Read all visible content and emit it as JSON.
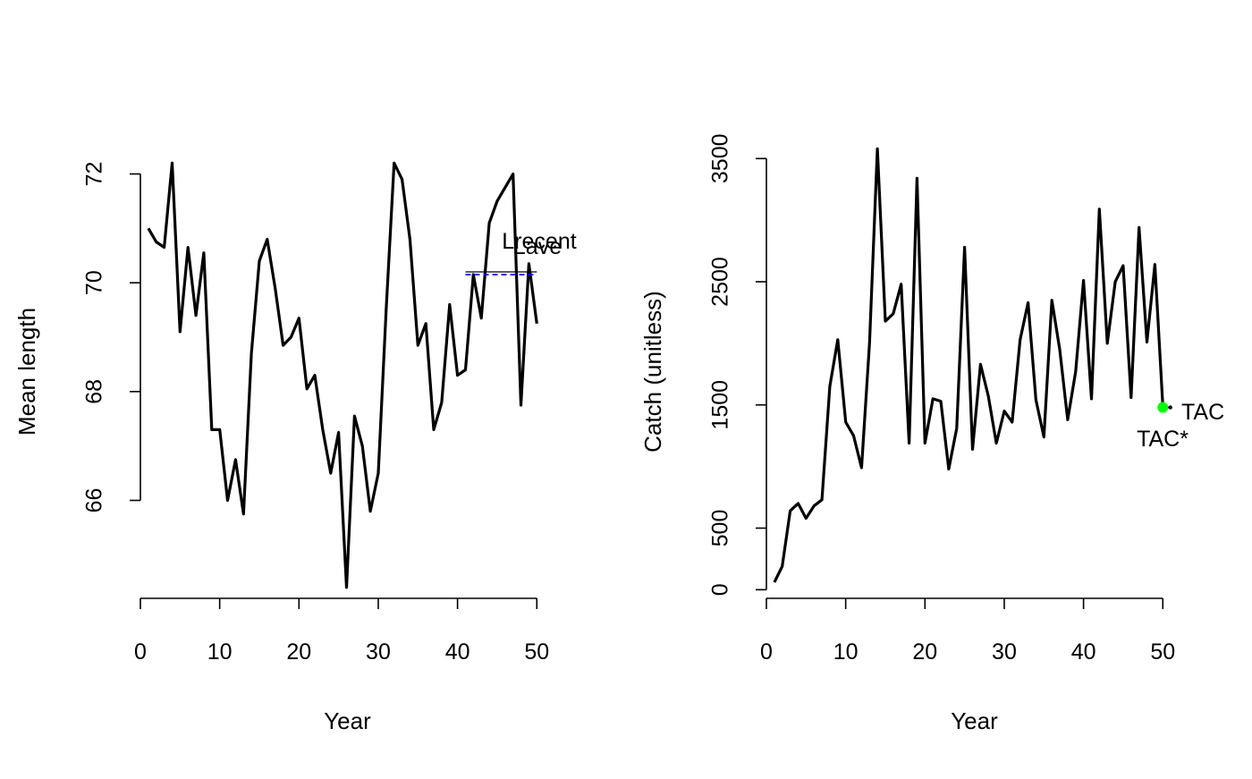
{
  "chart_data": [
    {
      "type": "line",
      "xlabel": "Year",
      "ylabel": "Mean length",
      "xlim": [
        0,
        52
      ],
      "ylim": [
        64.2,
        72.6
      ],
      "xticks": [
        0,
        10,
        20,
        30,
        40,
        50
      ],
      "yticks": [
        66,
        68,
        70,
        72
      ],
      "grid": false,
      "series": [
        {
          "color": "#000000",
          "x": [
            1,
            2,
            3,
            4,
            5,
            6,
            7,
            8,
            9,
            10,
            11,
            12,
            13,
            14,
            15,
            16,
            17,
            18,
            19,
            20,
            21,
            22,
            23,
            24,
            25,
            26,
            27,
            28,
            29,
            30,
            31,
            32,
            33,
            34,
            35,
            36,
            37,
            38,
            39,
            40,
            41,
            42,
            43,
            44,
            45,
            46,
            47,
            48,
            49,
            50
          ],
          "y": [
            71.0,
            70.75,
            70.65,
            72.2,
            69.1,
            70.65,
            69.4,
            70.55,
            67.3,
            67.3,
            66.0,
            66.75,
            65.75,
            68.7,
            70.4,
            70.8,
            69.9,
            68.85,
            69.0,
            69.35,
            68.05,
            68.3,
            67.3,
            66.5,
            67.25,
            64.4,
            67.55,
            67.0,
            65.8,
            66.5,
            69.5,
            72.2,
            71.9,
            70.8,
            68.85,
            69.25,
            67.3,
            67.8,
            69.6,
            68.3,
            68.4,
            70.15,
            69.35,
            71.1,
            71.5,
            71.75,
            72.0,
            67.75,
            70.35,
            69.25
          ]
        }
      ],
      "reference_lines": [
        {
          "label": "Lrecent",
          "color": "#000000",
          "style": "solid",
          "x": [
            41,
            50
          ],
          "y": 70.2
        },
        {
          "label": "Lave",
          "color": "#0000ff",
          "style": "dashed",
          "x": [
            41,
            50
          ],
          "y": 70.15
        }
      ]
    },
    {
      "type": "line",
      "xlabel": "Year",
      "ylabel": "Catch (unitless)",
      "xlim": [
        0,
        52
      ],
      "ylim": [
        -70,
        3640
      ],
      "xticks": [
        0,
        10,
        20,
        30,
        40,
        50
      ],
      "yticks": [
        0,
        500,
        1500,
        2500,
        3500
      ],
      "grid": false,
      "series": [
        {
          "color": "#000000",
          "x": [
            1,
            2,
            3,
            4,
            5,
            6,
            7,
            8,
            9,
            10,
            11,
            12,
            13,
            14,
            15,
            16,
            17,
            18,
            19,
            20,
            21,
            22,
            23,
            24,
            25,
            26,
            27,
            28,
            29,
            30,
            31,
            32,
            33,
            34,
            35,
            36,
            37,
            38,
            39,
            40,
            41,
            42,
            43,
            44,
            45,
            46,
            47,
            48,
            49,
            50
          ],
          "y": [
            60,
            190,
            640,
            700,
            580,
            680,
            730,
            1650,
            2030,
            1360,
            1250,
            990,
            2000,
            3580,
            2180,
            2240,
            2480,
            1190,
            3340,
            1190,
            1550,
            1530,
            980,
            1310,
            2780,
            1140,
            1830,
            1570,
            1190,
            1450,
            1360,
            2030,
            2330,
            1540,
            1240,
            2350,
            1950,
            1380,
            1770,
            2510,
            1550,
            3090,
            2000,
            2500,
            2630,
            1560,
            2940,
            2010,
            2640,
            1490
          ]
        }
      ],
      "points": [
        {
          "label": "TAC*",
          "color": "#00ff00",
          "x": 50,
          "y": 1480
        },
        {
          "label": "TAC",
          "color": "#0000ff",
          "x": 50.5,
          "y": 1480
        }
      ]
    }
  ]
}
